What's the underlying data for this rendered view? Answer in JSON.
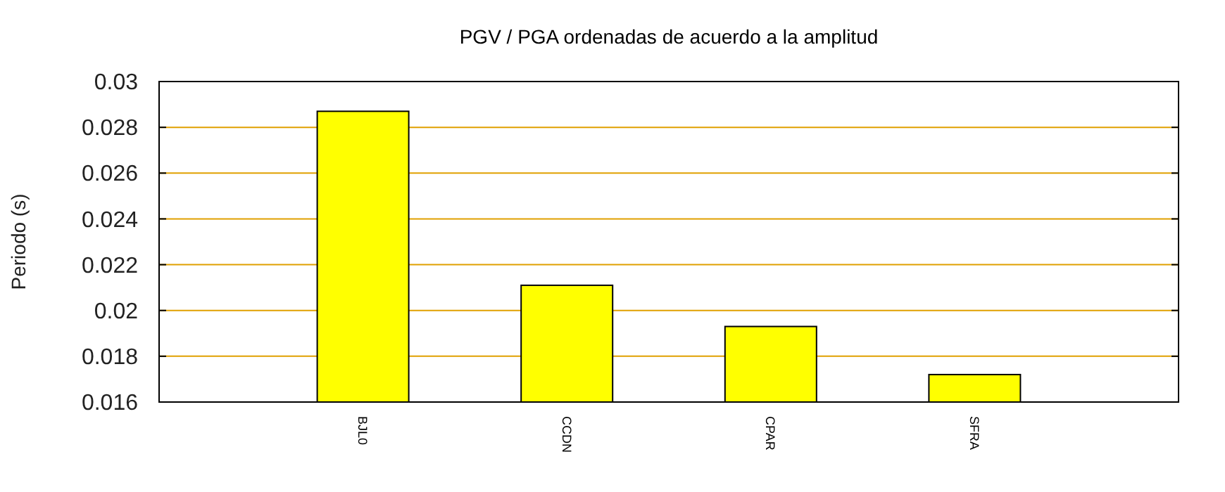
{
  "chart_data": {
    "type": "bar",
    "title": "PGV / PGA ordenadas de acuerdo a la amplitud",
    "ylabel": "Periodo (s)",
    "categories": [
      "BJL0",
      "CCDN",
      "CPAR",
      "SFRA"
    ],
    "values": [
      0.0287,
      0.0211,
      0.0193,
      0.0172
    ],
    "color": "#ffff00",
    "ylim": [
      0.016,
      0.03
    ],
    "yticks": [
      0.016,
      0.018,
      0.02,
      0.022,
      0.024,
      0.026,
      0.028,
      0.03
    ],
    "grid": "y"
  }
}
